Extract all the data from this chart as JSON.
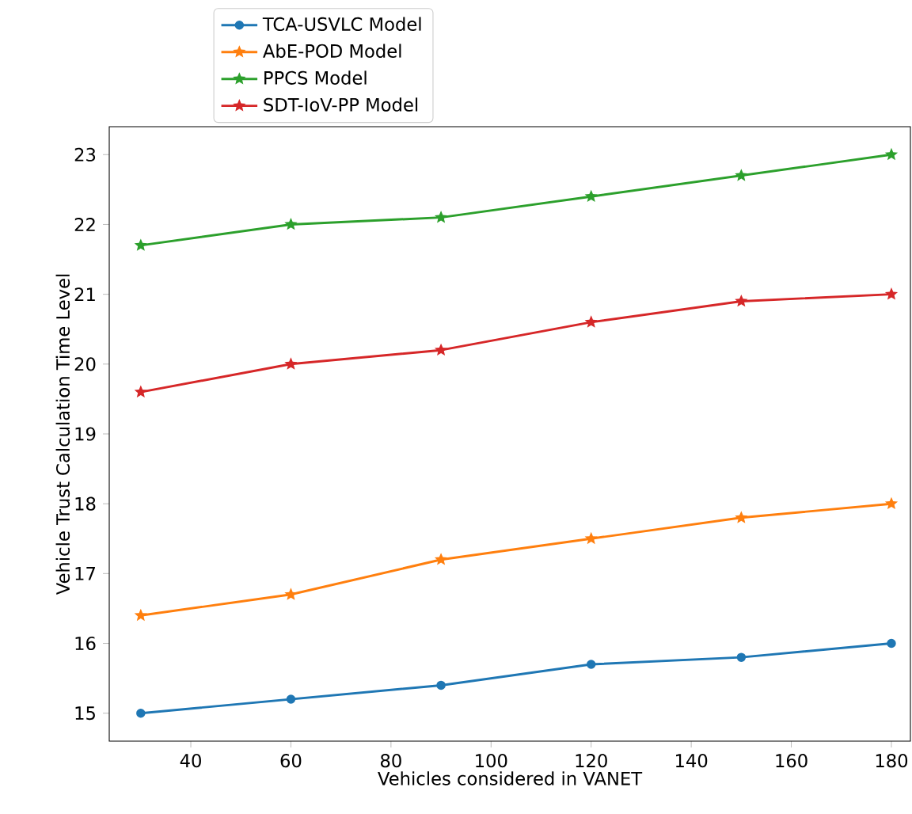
{
  "chart_data": {
    "type": "line",
    "xlabel": "Vehicles considered in VANET",
    "ylabel": "Vehicle Trust Calculation Time Level",
    "x": [
      30,
      60,
      90,
      120,
      150,
      180
    ],
    "series": [
      {
        "name": "TCA-USVLC Model",
        "color": "#1f77b4",
        "marker": "circle",
        "values": [
          15.0,
          15.2,
          15.4,
          15.7,
          15.8,
          16.0
        ]
      },
      {
        "name": "AbE-POD Model",
        "color": "#ff7f0e",
        "marker": "star",
        "values": [
          16.4,
          16.7,
          17.2,
          17.5,
          17.8,
          18.0
        ]
      },
      {
        "name": "PPCS Model",
        "color": "#2ca02c",
        "marker": "star",
        "values": [
          21.7,
          22.0,
          22.1,
          22.4,
          22.7,
          23.0
        ]
      },
      {
        "name": "SDT-IoV-PP Model",
        "color": "#d62728",
        "marker": "star",
        "values": [
          19.6,
          20.0,
          20.2,
          20.6,
          20.9,
          21.0
        ]
      }
    ],
    "xlim": [
      23.7,
      183.8
    ],
    "ylim": [
      14.6,
      23.4
    ],
    "xticks": [
      40,
      60,
      80,
      100,
      120,
      140,
      160,
      180
    ],
    "yticks": [
      15,
      16,
      17,
      18,
      19,
      20,
      21,
      22,
      23
    ],
    "legend": "top left",
    "line_style": "solid"
  }
}
